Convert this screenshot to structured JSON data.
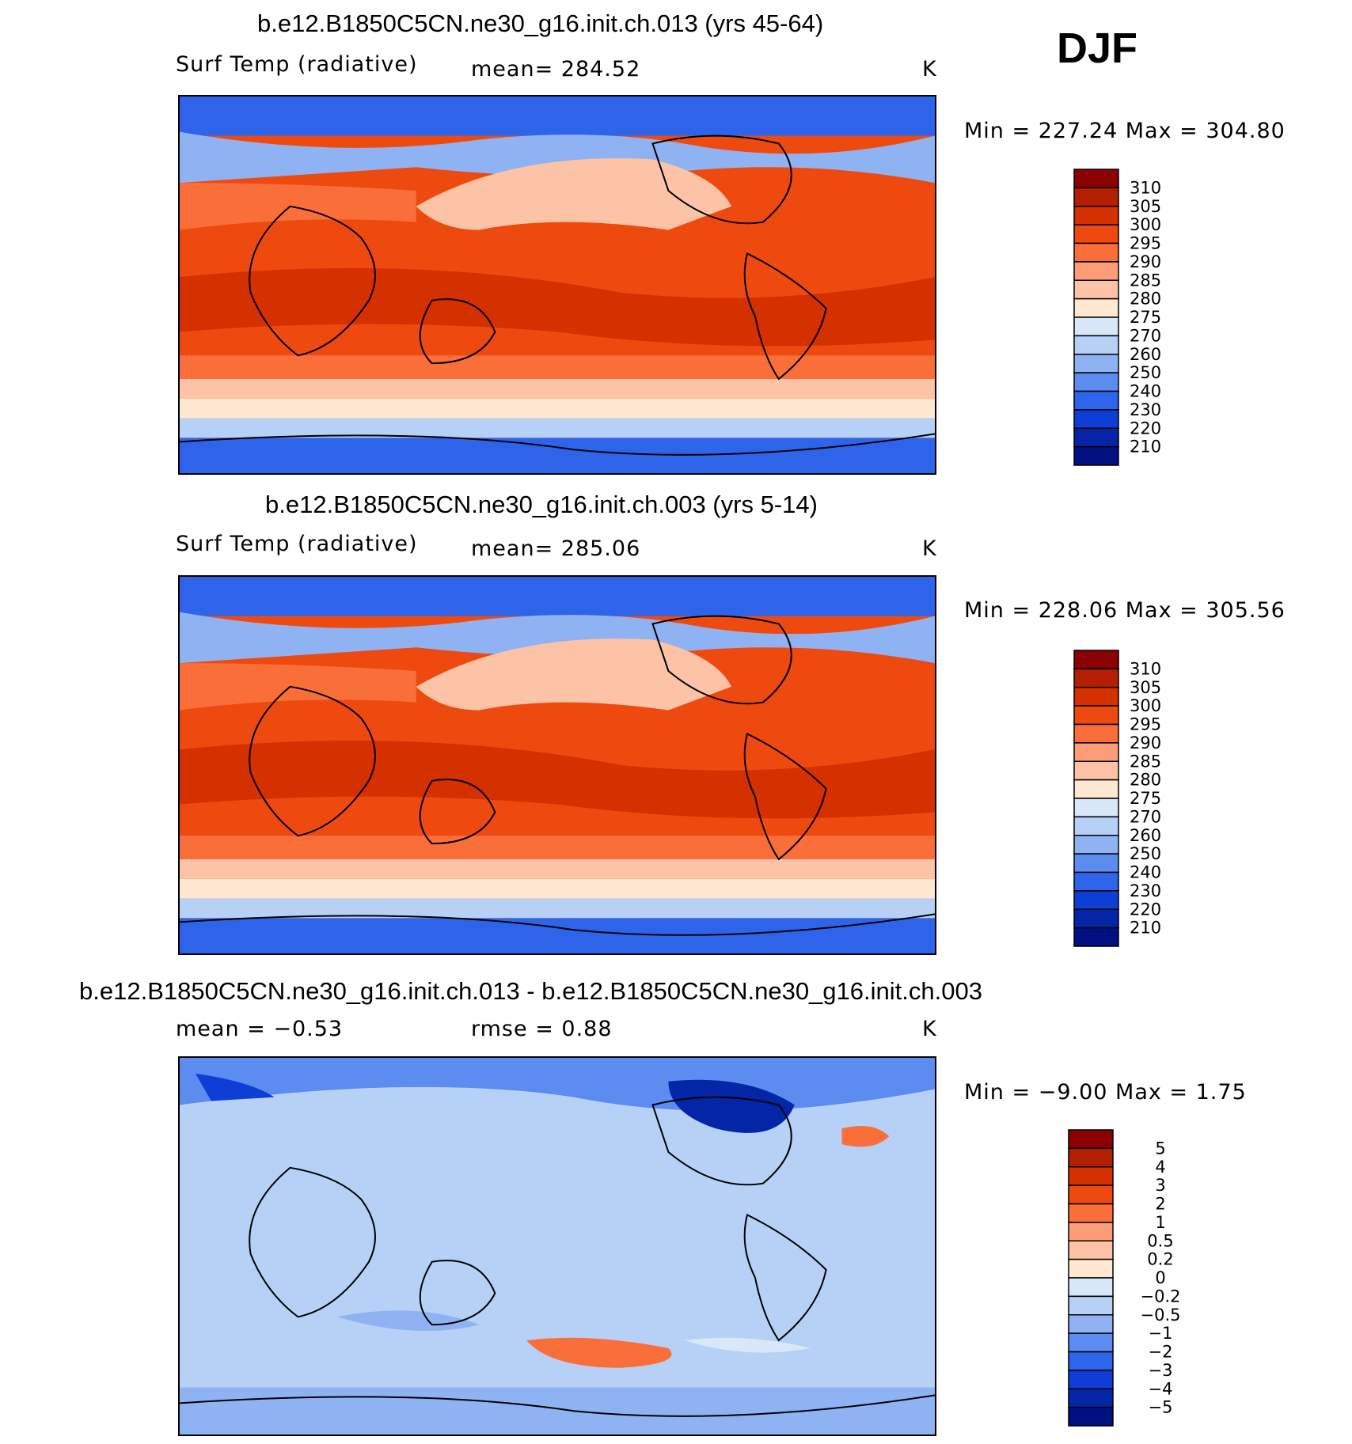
{
  "season": "DJF",
  "panels": [
    {
      "title": "b.e12.B1850C5CN.ne30_g16.init.ch.013 (yrs 45-64)",
      "left_label": "Surf Temp (radiative)",
      "mid_label": "mean=  284.52",
      "units": "K",
      "minmax": "Min  =  227.24  Max  =  304.80",
      "colorbar": {
        "labels": [
          "310",
          "305",
          "300",
          "295",
          "290",
          "285",
          "280",
          "275",
          "270",
          "260",
          "250",
          "240",
          "230",
          "220",
          "210"
        ],
        "colors": [
          "#8B0000",
          "#B22000",
          "#D53000",
          "#EE4A10",
          "#FA6E3A",
          "#FC9D78",
          "#FDC3A6",
          "#FEE8D2",
          "#D8E8F8",
          "#B6D0F6",
          "#8FB2F2",
          "#5C8CF0",
          "#2E64EA",
          "#0E3ED6",
          "#0325A6",
          "#001080"
        ]
      },
      "chart_data": {
        "type": "heatmap",
        "field": "Surf Temp (radiative)",
        "mean": 284.52,
        "min": 227.24,
        "max": 304.8,
        "units": "K"
      }
    },
    {
      "title": "b.e12.B1850C5CN.ne30_g16.init.ch.003 (yrs 5-14)",
      "left_label": "Surf Temp (radiative)",
      "mid_label": "mean=  285.06",
      "units": "K",
      "minmax": "Min  =  228.06  Max  =  305.56",
      "colorbar": {
        "labels": [
          "310",
          "305",
          "300",
          "295",
          "290",
          "285",
          "280",
          "275",
          "270",
          "260",
          "250",
          "240",
          "230",
          "220",
          "210"
        ],
        "colors": [
          "#8B0000",
          "#B22000",
          "#D53000",
          "#EE4A10",
          "#FA6E3A",
          "#FC9D78",
          "#FDC3A6",
          "#FEE8D2",
          "#D8E8F8",
          "#B6D0F6",
          "#8FB2F2",
          "#5C8CF0",
          "#2E64EA",
          "#0E3ED6",
          "#0325A6",
          "#001080"
        ]
      },
      "chart_data": {
        "type": "heatmap",
        "field": "Surf Temp (radiative)",
        "mean": 285.06,
        "min": 228.06,
        "max": 305.56,
        "units": "K"
      }
    },
    {
      "title": "b.e12.B1850C5CN.ne30_g16.init.ch.013 - b.e12.B1850C5CN.ne30_g16.init.ch.003",
      "left_label": "mean =    −0.53",
      "mid_label": "rmse =     0.88",
      "units": "K",
      "minmax": "Min  =    −9.00  Max  =     1.75",
      "colorbar": {
        "labels": [
          "5",
          "4",
          "3",
          "2",
          "1",
          "0.5",
          "0.2",
          "0",
          "−0.2",
          "−0.5",
          "−1",
          "−2",
          "−3",
          "−4",
          "−5"
        ],
        "colors": [
          "#8B0000",
          "#B22000",
          "#D53000",
          "#EE4A10",
          "#FA6E3A",
          "#FC9D78",
          "#FDC3A6",
          "#FEE8D2",
          "#D8E8F8",
          "#B6D0F6",
          "#8FB2F2",
          "#5C8CF0",
          "#2E64EA",
          "#0E3ED6",
          "#0325A6",
          "#001080"
        ]
      },
      "chart_data": {
        "type": "heatmap",
        "field": "difference",
        "mean": -0.53,
        "rmse": 0.88,
        "min": -9.0,
        "max": 1.75,
        "units": "K"
      }
    }
  ],
  "chart_data": [
    {
      "type": "heatmap",
      "title": "b.e12.B1850C5CN.ne30_g16.init.ch.013 (yrs 45-64)",
      "field": "Surf Temp (radiative)",
      "units": "K",
      "mean": 284.52,
      "min": 227.24,
      "max": 304.8,
      "levels": [
        210,
        220,
        230,
        240,
        250,
        260,
        270,
        275,
        280,
        285,
        290,
        295,
        300,
        305,
        310
      ]
    },
    {
      "type": "heatmap",
      "title": "b.e12.B1850C5CN.ne30_g16.init.ch.003 (yrs 5-14)",
      "field": "Surf Temp (radiative)",
      "units": "K",
      "mean": 285.06,
      "min": 228.06,
      "max": 305.56,
      "levels": [
        210,
        220,
        230,
        240,
        250,
        260,
        270,
        275,
        280,
        285,
        290,
        295,
        300,
        305,
        310
      ]
    },
    {
      "type": "heatmap",
      "title": "b.e12.B1850C5CN.ne30_g16.init.ch.013 - b.e12.B1850C5CN.ne30_g16.init.ch.003",
      "units": "K",
      "mean": -0.53,
      "rmse": 0.88,
      "min": -9.0,
      "max": 1.75,
      "levels": [
        -5,
        -4,
        -3,
        -2,
        -1,
        -0.5,
        -0.2,
        0,
        0.2,
        0.5,
        1,
        2,
        3,
        4,
        5
      ]
    }
  ]
}
